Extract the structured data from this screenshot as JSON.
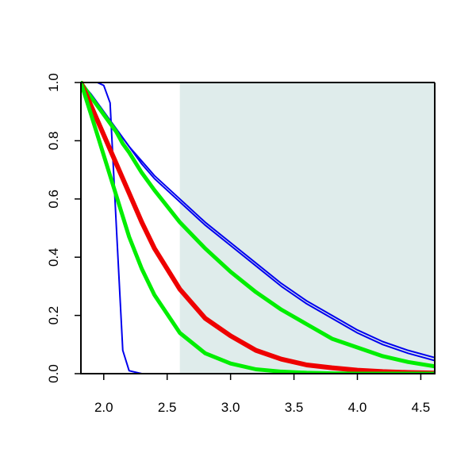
{
  "chart_data": {
    "type": "line",
    "x": [
      1.82,
      1.9,
      1.95,
      2.0,
      2.05,
      2.1,
      2.15,
      2.2,
      2.3,
      2.4,
      2.6,
      2.8,
      3.0,
      3.2,
      3.4,
      3.6,
      3.8,
      4.0,
      4.2,
      4.4,
      4.61
    ],
    "series": [
      {
        "color": "#0000ee",
        "line_width": 2,
        "values": [
          1,
          1,
          1,
          0.99,
          0.93,
          0.5,
          0.08,
          0.01,
          0,
          0,
          0,
          0,
          0,
          0,
          0,
          0,
          0,
          0,
          0,
          0,
          0
        ]
      },
      {
        "color": "#0000ee",
        "line_width": 2,
        "values": [
          1,
          0.96,
          0.93,
          0.9,
          0.87,
          0.84,
          0.81,
          0.78,
          0.73,
          0.68,
          0.6,
          0.52,
          0.45,
          0.38,
          0.31,
          0.25,
          0.2,
          0.15,
          0.11,
          0.08,
          0.055
        ]
      },
      {
        "color": "#0000ee",
        "line_width": 2,
        "values": [
          1,
          0.96,
          0.93,
          0.9,
          0.87,
          0.84,
          0.81,
          0.78,
          0.72,
          0.67,
          0.59,
          0.51,
          0.44,
          0.37,
          0.3,
          0.24,
          0.19,
          0.14,
          0.1,
          0.07,
          0.045
        ]
      },
      {
        "color": "#00ee00",
        "line_width": 5,
        "values": [
          1,
          0.95,
          0.92,
          0.89,
          0.86,
          0.83,
          0.79,
          0.76,
          0.69,
          0.63,
          0.52,
          0.43,
          0.35,
          0.28,
          0.22,
          0.17,
          0.12,
          0.09,
          0.06,
          0.04,
          0.025
        ]
      },
      {
        "color": "#ee0000",
        "line_width": 6,
        "values": [
          1,
          0.92,
          0.87,
          0.82,
          0.77,
          0.72,
          0.67,
          0.62,
          0.52,
          0.43,
          0.29,
          0.19,
          0.13,
          0.08,
          0.05,
          0.03,
          0.02,
          0.012,
          0.007,
          0.004,
          0.002
        ]
      },
      {
        "color": "#00ee00",
        "line_width": 5,
        "values": [
          1,
          0.89,
          0.82,
          0.75,
          0.68,
          0.61,
          0.54,
          0.47,
          0.36,
          0.27,
          0.14,
          0.07,
          0.035,
          0.015,
          0.007,
          0.003,
          0.001,
          0,
          0,
          0,
          0
        ]
      }
    ],
    "shade": {
      "x": [
        2.6,
        4.61
      ],
      "color": "#dfeceb"
    },
    "xlim": [
      1.82,
      4.61
    ],
    "xticks": [
      {
        "value": 2,
        "label": "2.0"
      },
      2.5,
      {
        "value": 3,
        "label": "3.0"
      },
      3.5,
      {
        "value": 4,
        "label": "4.0"
      },
      4.5
    ],
    "ylim": [
      0,
      1
    ],
    "yticks": [
      {
        "value": 0,
        "label": "0.0"
      },
      0.2,
      0.4,
      0.6,
      0.8,
      {
        "value": 1,
        "label": "1.0"
      }
    ]
  }
}
